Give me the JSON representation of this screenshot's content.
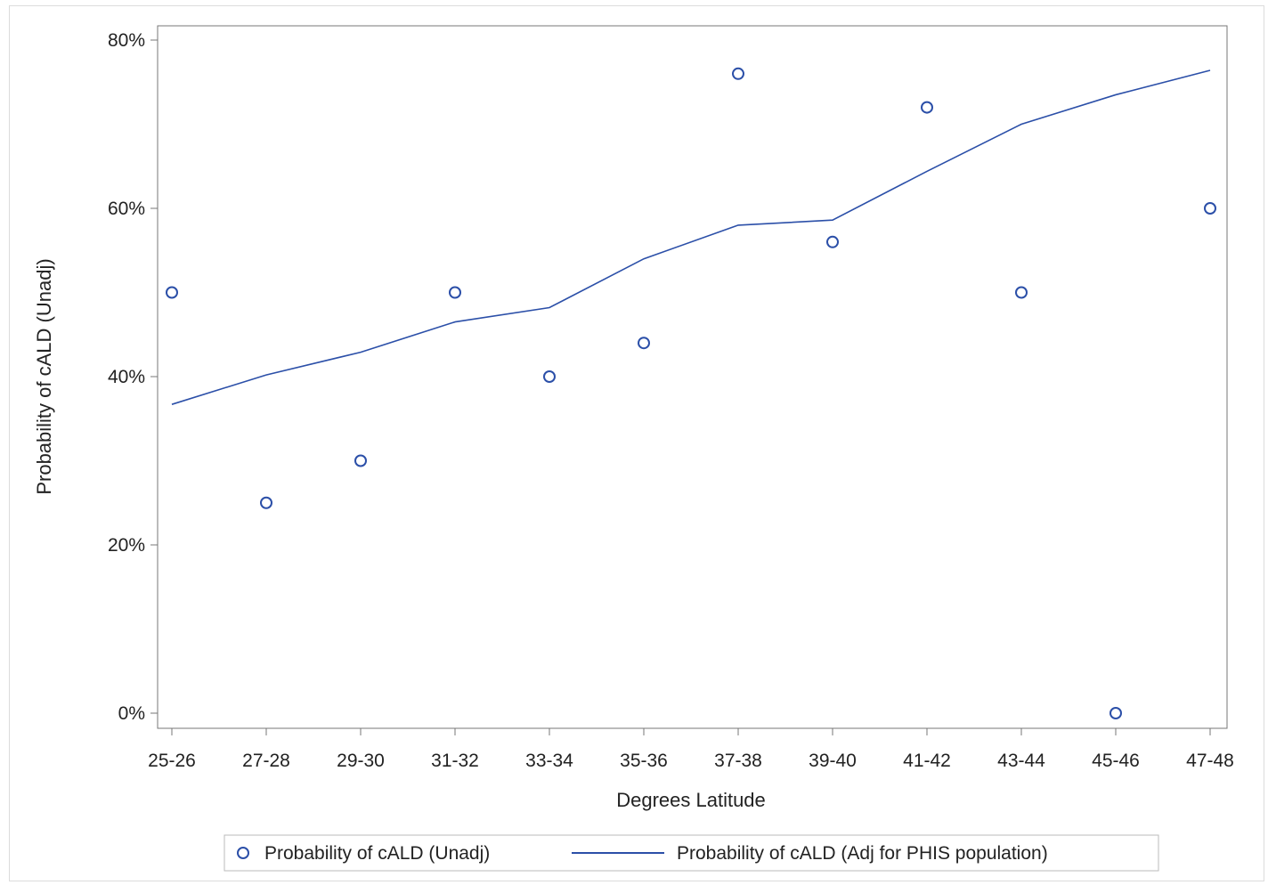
{
  "chart_data": {
    "type": "scatter",
    "xlabel": "Degrees Latitude",
    "ylabel": "Probability of cALD (Unadj)",
    "categories": [
      "25-26",
      "27-28",
      "29-30",
      "31-32",
      "33-34",
      "35-36",
      "37-38",
      "39-40",
      "41-42",
      "43-44",
      "45-46",
      "47-48"
    ],
    "ylim": [
      0,
      0.8
    ],
    "yticks": [
      0,
      0.2,
      0.4,
      0.6,
      0.8
    ],
    "ytick_labels": [
      "0%",
      "20%",
      "40%",
      "60%",
      "80%"
    ],
    "grid": false,
    "legend_position": "bottom",
    "series": [
      {
        "name": "Probability of cALD (Unadj)",
        "kind": "markers",
        "marker": "circle-open",
        "color": "#2b4fa8",
        "values": [
          0.5,
          0.25,
          0.3,
          0.5,
          0.4,
          0.44,
          0.76,
          0.56,
          0.72,
          0.5,
          0.0,
          0.6
        ]
      },
      {
        "name": "Probability of cALD (Adj for PHIS population)",
        "kind": "line",
        "color": "#2b4fa8",
        "values": [
          0.367,
          0.402,
          0.429,
          0.465,
          0.482,
          0.54,
          0.58,
          0.586,
          0.644,
          0.7,
          0.735,
          0.764
        ]
      }
    ]
  }
}
